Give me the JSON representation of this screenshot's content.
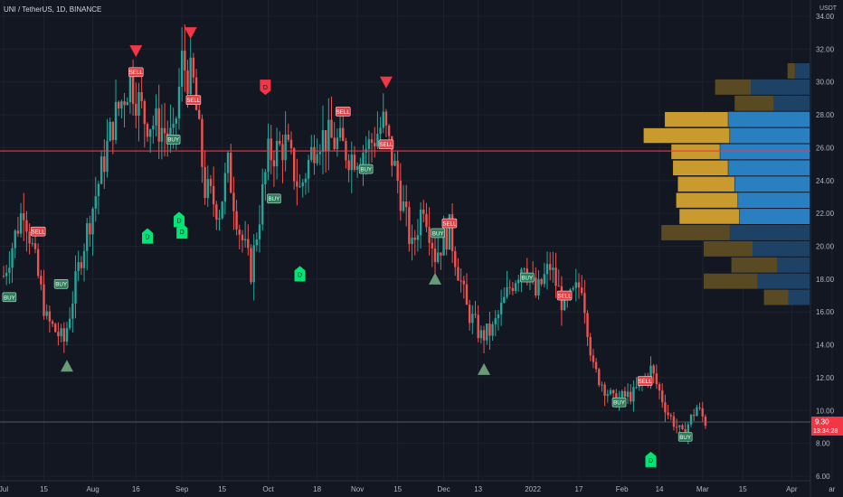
{
  "symbol_line": "UNI / TetherUS, 1D, BINANCE",
  "currency": "USDT",
  "price_tag": {
    "price": "9.30",
    "countdown": "13:34:28",
    "color": "#f23645"
  },
  "colors": {
    "background": "#131722",
    "up": "#26a69a",
    "down": "#ef5350",
    "hline": "#f23645",
    "vp_buy": "#2a7fc1",
    "vp_sell": "#c99a2e",
    "signal_buy": "#00e676",
    "triangle_up": "#6a9a77"
  },
  "chart_data": {
    "type": "candlestick",
    "title": "UNI / TetherUS, 1D, BINANCE",
    "ylabel": "USDT",
    "y_ticks": [
      6,
      8,
      10,
      12,
      14,
      16,
      18,
      20,
      22,
      24,
      26,
      28,
      30,
      32,
      34
    ],
    "ylim": [
      5,
      35
    ],
    "x_ticks": [
      {
        "label": "Jul",
        "day": 0
      },
      {
        "label": "15",
        "day": 14
      },
      {
        "label": "Aug",
        "day": 31
      },
      {
        "label": "16",
        "day": 46
      },
      {
        "label": "Sep",
        "day": 62
      },
      {
        "label": "15",
        "day": 76
      },
      {
        "label": "Oct",
        "day": 92
      },
      {
        "label": "18",
        "day": 109
      },
      {
        "label": "Nov",
        "day": 123
      },
      {
        "label": "15",
        "day": 137
      },
      {
        "label": "Dec",
        "day": 153
      },
      {
        "label": "13",
        "day": 165
      },
      {
        "label": "2022",
        "day": 184
      },
      {
        "label": "17",
        "day": 200
      },
      {
        "label": "Feb",
        "day": 215
      },
      {
        "label": "14",
        "day": 228
      },
      {
        "label": "Mar",
        "day": 243
      },
      {
        "label": "15",
        "day": 257
      },
      {
        "label": "Apr",
        "day": 274
      },
      {
        "label": "ar",
        "day": 288
      }
    ],
    "price_path": [
      [
        0,
        18.2
      ],
      [
        7,
        22.5
      ],
      [
        15,
        15.5
      ],
      [
        21,
        14.2
      ],
      [
        27,
        19.5
      ],
      [
        38,
        27.5
      ],
      [
        44,
        30.2
      ],
      [
        49,
        27.8
      ],
      [
        55,
        27.2
      ],
      [
        59,
        26.3
      ],
      [
        62,
        31.2
      ],
      [
        66,
        29.8
      ],
      [
        70,
        23.5
      ],
      [
        75,
        22.2
      ],
      [
        78,
        24.8
      ],
      [
        82,
        21.0
      ],
      [
        86,
        18.5
      ],
      [
        92,
        25.5
      ],
      [
        98,
        26.2
      ],
      [
        103,
        23.4
      ],
      [
        109,
        26.8
      ],
      [
        116,
        26.3
      ],
      [
        121,
        25.5
      ],
      [
        127,
        26.1
      ],
      [
        132,
        27.5
      ],
      [
        137,
        24.0
      ],
      [
        142,
        19.8
      ],
      [
        146,
        22.8
      ],
      [
        150,
        19.5
      ],
      [
        155,
        21.0
      ],
      [
        161,
        16.2
      ],
      [
        166,
        14.5
      ],
      [
        170,
        14.9
      ],
      [
        176,
        17.5
      ],
      [
        181,
        19.2
      ],
      [
        185,
        17.0
      ],
      [
        190,
        18.8
      ],
      [
        195,
        16.2
      ],
      [
        201,
        17.8
      ],
      [
        205,
        12.5
      ],
      [
        212,
        10.6
      ],
      [
        219,
        11.0
      ],
      [
        225,
        12.5
      ],
      [
        231,
        9.8
      ],
      [
        236,
        8.5
      ],
      [
        241,
        10.2
      ],
      [
        244,
        9.3
      ]
    ],
    "horizontal_line": 25.8,
    "last_price_line": 9.3,
    "volume_profile": [
      {
        "price": 32.0,
        "buy": 0.9,
        "sell": 0.45
      },
      {
        "price": 30.0,
        "buy": 3.6,
        "sell": 2.2
      },
      {
        "price": 28.0,
        "buy": 2.2,
        "sell": 2.4
      },
      {
        "price": 26.0,
        "buy": 5.0,
        "sell": 3.9
      },
      {
        "price": 26.0,
        "buy": 4.9,
        "sell": 5.3
      },
      {
        "price": 24.0,
        "buy": 5.5,
        "sell": 3.0
      },
      {
        "price": 22.0,
        "buy": 5.0,
        "sell": 3.4
      },
      {
        "price": 20.0,
        "buy": 4.6,
        "sell": 3.5
      },
      {
        "price": 18.0,
        "buy": 4.4,
        "sell": 3.8
      },
      {
        "price": 16.0,
        "buy": 4.3,
        "sell": 3.7
      },
      {
        "price": 14.0,
        "buy": 4.9,
        "sell": 4.2
      },
      {
        "price": 12.0,
        "buy": 3.5,
        "sell": 3.0
      },
      {
        "price": 10.0,
        "buy": 2.0,
        "sell": 2.8
      },
      {
        "price": 9.0,
        "buy": 3.2,
        "sell": 3.3
      },
      {
        "price": 8.0,
        "buy": 1.3,
        "sell": 1.5
      }
    ],
    "signals": [
      {
        "type": "BUY",
        "day": 2,
        "price": 16.9,
        "style": "box"
      },
      {
        "type": "SELL",
        "day": 12,
        "price": 20.9,
        "style": "box"
      },
      {
        "type": "BUY",
        "day": 20,
        "price": 17.7,
        "style": "box"
      },
      {
        "type": "SELL",
        "day": 46,
        "price": 30.6,
        "style": "box"
      },
      {
        "type": "BUY",
        "day": 59,
        "price": 26.5,
        "style": "box"
      },
      {
        "type": "SELL",
        "day": 66,
        "price": 28.9,
        "style": "box"
      },
      {
        "type": "BUY",
        "day": 94,
        "price": 22.9,
        "style": "box"
      },
      {
        "type": "SELL",
        "day": 118,
        "price": 28.2,
        "style": "box"
      },
      {
        "type": "BUY",
        "day": 126,
        "price": 24.7,
        "style": "box"
      },
      {
        "type": "SELL",
        "day": 133,
        "price": 26.2,
        "style": "box"
      },
      {
        "type": "BUY",
        "day": 151,
        "price": 20.8,
        "style": "box"
      },
      {
        "type": "SELL",
        "day": 155,
        "price": 21.4,
        "style": "box"
      },
      {
        "type": "BUY",
        "day": 182,
        "price": 18.1,
        "style": "box"
      },
      {
        "type": "SELL",
        "day": 195,
        "price": 17.0,
        "style": "box"
      },
      {
        "type": "BUY",
        "day": 214,
        "price": 10.5,
        "style": "box"
      },
      {
        "type": "SELL",
        "day": 223,
        "price": 11.8,
        "style": "box"
      },
      {
        "type": "BUY",
        "day": 237,
        "price": 8.4,
        "style": "box"
      }
    ],
    "diamond_markers": [
      {
        "label": "D",
        "day": 50,
        "price": 20.6,
        "color": "#00e676",
        "dir": "up"
      },
      {
        "label": "D",
        "day": 61,
        "price": 21.6,
        "color": "#00e676",
        "dir": "up"
      },
      {
        "label": "D",
        "day": 62,
        "price": 20.9,
        "color": "#00e676",
        "dir": "up"
      },
      {
        "label": "D",
        "day": 103,
        "price": 18.3,
        "color": "#00e676",
        "dir": "up"
      },
      {
        "label": "D",
        "day": 91,
        "price": 29.7,
        "color": "#f23645",
        "dir": "down"
      },
      {
        "label": "D",
        "day": 225,
        "price": 7.0,
        "color": "#00e676",
        "dir": "up"
      }
    ],
    "triangles": [
      {
        "dir": "down",
        "day": 46,
        "price": 31.9
      },
      {
        "dir": "down",
        "day": 65,
        "price": 33.0
      },
      {
        "dir": "down",
        "day": 133,
        "price": 30.0
      },
      {
        "dir": "up",
        "day": 22,
        "price": 12.7
      },
      {
        "dir": "up",
        "day": 150,
        "price": 18.0
      },
      {
        "dir": "up",
        "day": 167,
        "price": 12.5
      }
    ]
  }
}
